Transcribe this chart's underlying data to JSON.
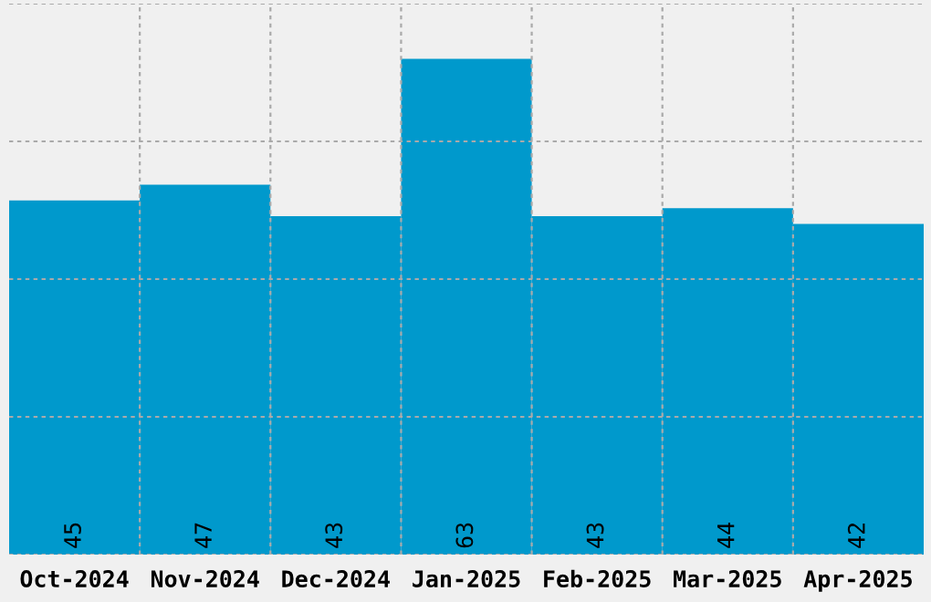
{
  "chart_data": {
    "type": "bar",
    "categories": [
      "Oct-2024",
      "Nov-2024",
      "Dec-2024",
      "Jan-2025",
      "Feb-2025",
      "Mar-2025",
      "Apr-2025"
    ],
    "values": [
      45,
      47,
      43,
      63,
      43,
      44,
      42
    ],
    "color": "#0099cc",
    "ylim": [
      0,
      70
    ],
    "yticks": [
      {
        "value": 0,
        "label": null
      },
      {
        "value": 17.5,
        "label": null
      },
      {
        "value": 35,
        "label": null
      },
      {
        "value": 52.5,
        "label": null
      },
      {
        "value": 70,
        "label": null
      }
    ],
    "tick_labels": "x",
    "grid": true,
    "data_labels": true
  }
}
